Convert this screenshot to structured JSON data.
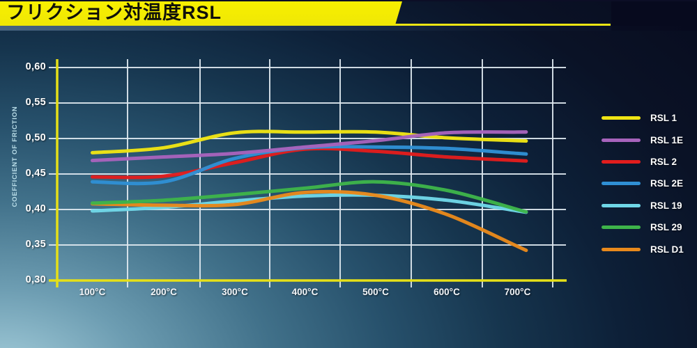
{
  "header": {
    "title": "フリクション対温度RSL"
  },
  "chart": {
    "y_axis_title": "COEFFICIENT OF FRICTION",
    "y_tick_labels": [
      "0,60",
      "0,55",
      "0,50",
      "0,45",
      "0,40",
      "0,35",
      "0,30"
    ],
    "x_tick_labels": [
      "100°C",
      "200°C",
      "300°C",
      "400°C",
      "500°C",
      "600°C",
      "700°C"
    ]
  },
  "chart_data": {
    "type": "line",
    "title": "フリクション対温度RSL",
    "x": [
      100,
      200,
      300,
      400,
      500,
      600,
      700
    ],
    "x_unit": "°C",
    "ylabel": "COEFFICIENT OF FRICTION",
    "ylim": [
      0.3,
      0.6
    ],
    "ytick_step": 0.05,
    "grid": true,
    "legend_position": "right",
    "series": [
      {
        "name": "RSL 1",
        "color": "#f0e414",
        "values": [
          0.48,
          0.487,
          0.508,
          0.509,
          0.509,
          0.501,
          0.497
        ]
      },
      {
        "name": "RSL 1E",
        "color": "#a763bc",
        "values": [
          0.469,
          0.474,
          0.479,
          0.488,
          0.497,
          0.508,
          0.509
        ]
      },
      {
        "name": "RSL 2",
        "color": "#e11d1d",
        "values": [
          0.446,
          0.447,
          0.466,
          0.485,
          0.482,
          0.474,
          0.469
        ]
      },
      {
        "name": "RSL 2E",
        "color": "#2f8fd4",
        "values": [
          0.439,
          0.439,
          0.472,
          0.487,
          0.488,
          0.486,
          0.479
        ]
      },
      {
        "name": "RSL 19",
        "color": "#6fd7e7",
        "values": [
          0.398,
          0.403,
          0.412,
          0.419,
          0.42,
          0.413,
          0.398
        ]
      },
      {
        "name": "RSL 29",
        "color": "#3eb44a",
        "values": [
          0.409,
          0.413,
          0.421,
          0.43,
          0.439,
          0.427,
          0.4
        ]
      },
      {
        "name": "RSL D1",
        "color": "#e8891c",
        "values": [
          0.408,
          0.406,
          0.407,
          0.424,
          0.42,
          0.393,
          0.348
        ]
      }
    ]
  },
  "colors": {
    "banner_yellow": "#f2ea05",
    "axis_yellow": "#e6e018",
    "gridline_white": "#dfe9f0",
    "tick_text": "#ffffff",
    "y_axis_title_text": "#b9dde8"
  }
}
